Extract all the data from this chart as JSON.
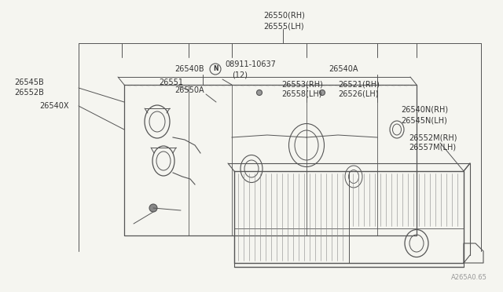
{
  "bg_color": "#f5f5f0",
  "line_color": "#555555",
  "text_color": "#333333",
  "watermark": "A265A0.65",
  "figsize": [
    6.4,
    3.72
  ],
  "dpi": 100,
  "labels": {
    "top_center_1": "26550(RH)",
    "top_center_2": "26555(LH)",
    "left_1": "26545B",
    "left_2": "26552B",
    "left_3": "26540X",
    "mid_1": "26540B",
    "mid_2": "26551",
    "mid_3": "26550A",
    "mid_4": "08911-10637",
    "mid_5": "(12)",
    "mid_6": "N",
    "right_1": "26540A",
    "right_2": "26553(RH)",
    "right_3": "26558(LH)",
    "right_4": "26521(RH)",
    "right_5": "26526(LH)",
    "right_6": "26540N(RH)",
    "right_7": "26545N(LH)",
    "right_8": "26552M(RH)",
    "right_9": "26557M(LH)"
  }
}
